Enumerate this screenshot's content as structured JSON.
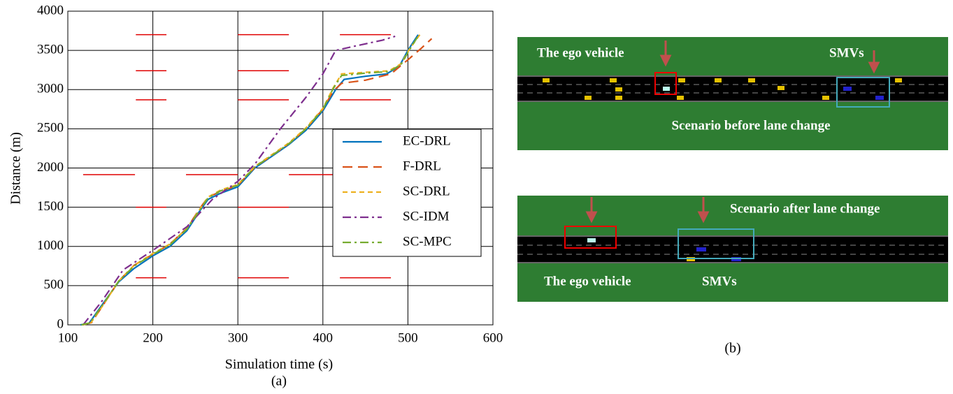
{
  "chart_data": {
    "type": "line",
    "x_label": "Simulation time (s)",
    "y_label": "Distance (m)",
    "caption": "(a)",
    "xlim": [
      100,
      600
    ],
    "ylim": [
      0,
      4000
    ],
    "xticks": [
      100,
      200,
      300,
      400,
      500,
      600
    ],
    "yticks": [
      0,
      500,
      1000,
      1500,
      2000,
      2500,
      3000,
      3500,
      4000
    ],
    "grid": true,
    "legend": "upper right",
    "series": [
      {
        "name": "EC-DRL",
        "color": "#0072bd",
        "style": "solid",
        "x": [
          115,
          125,
          140,
          160,
          178,
          200,
          220,
          240,
          255,
          265,
          280,
          300,
          320,
          340,
          360,
          380,
          400,
          415,
          425,
          450,
          475,
          490,
          500,
          512
        ],
        "values": [
          0,
          20,
          250,
          550,
          720,
          880,
          1000,
          1200,
          1450,
          1600,
          1680,
          1760,
          2000,
          2150,
          2300,
          2480,
          2730,
          3000,
          3130,
          3170,
          3200,
          3300,
          3500,
          3700
        ]
      },
      {
        "name": "F-DRL",
        "color": "#d95319",
        "style": "dashed",
        "x": [
          118,
          128,
          142,
          160,
          178,
          200,
          220,
          240,
          255,
          265,
          280,
          300,
          320,
          340,
          360,
          380,
          400,
          412,
          422,
          450,
          480,
          500,
          515,
          528
        ],
        "values": [
          0,
          30,
          260,
          560,
          760,
          900,
          1030,
          1230,
          1480,
          1630,
          1700,
          1780,
          2010,
          2160,
          2310,
          2500,
          2750,
          2980,
          3080,
          3120,
          3200,
          3380,
          3520,
          3650
        ]
      },
      {
        "name": "SC-DRL",
        "color": "#edb120",
        "style": "short",
        "x": [
          117,
          127,
          142,
          160,
          178,
          200,
          220,
          240,
          255,
          265,
          280,
          300,
          320,
          340,
          360,
          380,
          400,
          412,
          422,
          450,
          478,
          492,
          502,
          514
        ],
        "values": [
          0,
          25,
          260,
          560,
          760,
          910,
          1030,
          1230,
          1470,
          1630,
          1720,
          1790,
          2020,
          2170,
          2320,
          2510,
          2760,
          3020,
          3200,
          3220,
          3240,
          3330,
          3520,
          3700
        ]
      },
      {
        "name": "SC-IDM",
        "color": "#7e2f8e",
        "style": "dashdot",
        "x": [
          118,
          140,
          165,
          200,
          240,
          270,
          300,
          320,
          350,
          380,
          400,
          415,
          440,
          470,
          485
        ],
        "values": [
          0,
          300,
          700,
          950,
          1250,
          1600,
          1830,
          2050,
          2500,
          2900,
          3200,
          3500,
          3560,
          3630,
          3680
        ]
      },
      {
        "name": "SC-MPC",
        "color": "#77ac30",
        "style": "dashdot",
        "x": [
          116,
          126,
          141,
          160,
          178,
          200,
          220,
          240,
          255,
          265,
          280,
          300,
          320,
          340,
          360,
          380,
          400,
          412,
          422,
          450,
          478,
          492,
          502,
          513
        ],
        "values": [
          0,
          25,
          255,
          560,
          750,
          900,
          1020,
          1220,
          1460,
          1620,
          1710,
          1780,
          2015,
          2160,
          2310,
          2500,
          2750,
          3010,
          3180,
          3210,
          3230,
          3320,
          3510,
          3700
        ]
      }
    ],
    "red_segments": {
      "color": "#e00000",
      "items": [
        [
          180,
          216,
          3700
        ],
        [
          300,
          360,
          3700
        ],
        [
          420,
          480,
          3700
        ],
        [
          180,
          216,
          3240
        ],
        [
          300,
          360,
          3240
        ],
        [
          180,
          216,
          2870
        ],
        [
          300,
          360,
          2870
        ],
        [
          420,
          480,
          2870
        ],
        [
          118,
          179,
          1915
        ],
        [
          239,
          300,
          1915
        ],
        [
          360,
          420,
          1915
        ],
        [
          180,
          216,
          1500
        ],
        [
          300,
          360,
          1500
        ],
        [
          180,
          216,
          600
        ],
        [
          300,
          360,
          600
        ],
        [
          420,
          480,
          600
        ]
      ]
    }
  },
  "figure_b": {
    "caption": "(b)",
    "top": {
      "ego_label": "The ego vehicle",
      "smv_label": "SMVs",
      "title": "Scenario before lane change"
    },
    "bottom": {
      "title": "Scenario after lane change",
      "ego_label": "The ego vehicle",
      "smv_label": "SMVs"
    }
  }
}
